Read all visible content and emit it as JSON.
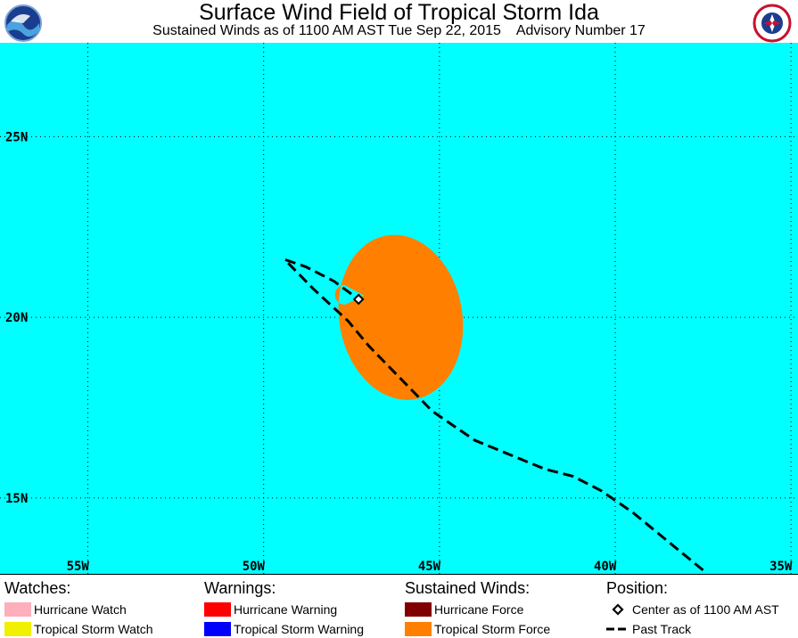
{
  "header": {
    "title": "Surface Wind Field of Tropical Storm Ida",
    "subtitle_left": "Sustained Winds as of 1100 AM AST Tue Sep 22, 2015",
    "subtitle_right": "Advisory Number 17"
  },
  "map": {
    "ocean_color": "#00ffff",
    "wind_field_color": "#ff8000",
    "track_color": "#000000",
    "lon_range": [
      -57.5,
      -34.8
    ],
    "lat_range": [
      12.9,
      27.6
    ],
    "lon_ticks": [
      {
        "value": -55,
        "label": "55W"
      },
      {
        "value": -50,
        "label": "50W"
      },
      {
        "value": -45,
        "label": "45W"
      },
      {
        "value": -40,
        "label": "40W"
      },
      {
        "value": -35,
        "label": "35W"
      }
    ],
    "lat_ticks": [
      {
        "value": 25,
        "label": "25N"
      },
      {
        "value": 20,
        "label": "20N"
      },
      {
        "value": 15,
        "label": "15N"
      }
    ],
    "center": {
      "lon": -47.3,
      "lat": 20.5
    },
    "past_track": [
      [
        -37.5,
        13.0
      ],
      [
        -38.5,
        13.8
      ],
      [
        -39.5,
        14.6
      ],
      [
        -40.4,
        15.2
      ],
      [
        -41.2,
        15.6
      ],
      [
        -42.0,
        15.8
      ],
      [
        -43.0,
        16.2
      ],
      [
        -44.0,
        16.6
      ],
      [
        -45.2,
        17.4
      ],
      [
        -46.2,
        18.4
      ],
      [
        -47.0,
        19.2
      ],
      [
        -47.6,
        19.9
      ],
      [
        -48.6,
        20.8
      ],
      [
        -49.4,
        21.6
      ],
      [
        -48.8,
        21.4
      ],
      [
        -48.0,
        21.0
      ],
      [
        -47.3,
        20.5
      ]
    ],
    "tropical_storm_field": {
      "center": {
        "lon": -46.1,
        "lat": 20.0
      },
      "half_width_lon": 1.75,
      "half_height_lat": 2.3,
      "tilt_deg": -10,
      "notch": {
        "lon": -47.45,
        "lat": 20.6
      }
    }
  },
  "legend": {
    "watches": {
      "heading": "Watches:",
      "items": [
        {
          "label": "Hurricane Watch",
          "color": "#ffaebc"
        },
        {
          "label": "Tropical Storm Watch",
          "color": "#f0f000"
        }
      ]
    },
    "warnings": {
      "heading": "Warnings:",
      "items": [
        {
          "label": "Hurricane Warning",
          "color": "#ff0000"
        },
        {
          "label": "Tropical Storm Warning",
          "color": "#0000ff"
        }
      ]
    },
    "winds": {
      "heading": "Sustained Winds:",
      "items": [
        {
          "label": "Hurricane Force",
          "color": "#800000"
        },
        {
          "label": "Tropical Storm Force",
          "color": "#ff8000"
        }
      ]
    },
    "position": {
      "heading": "Position:",
      "items": [
        {
          "label": "Center as of 1100 AM AST",
          "icon": "diamond-icon"
        },
        {
          "label": "Past Track",
          "icon": "dashed-line-icon"
        }
      ]
    }
  }
}
